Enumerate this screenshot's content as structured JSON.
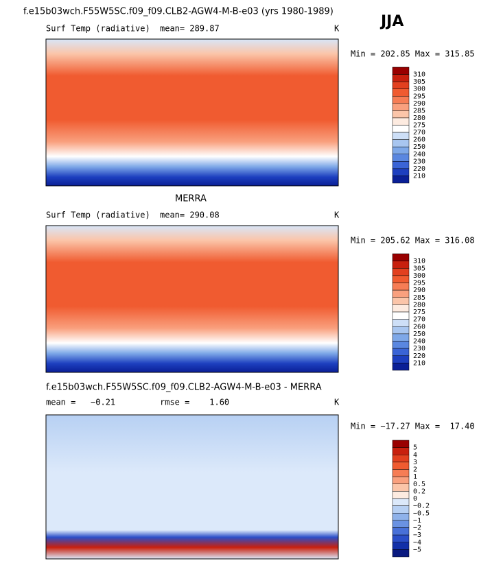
{
  "season": "JJA",
  "panels": [
    {
      "title": "f.e15b03wch.F55W5SC.f09_f09.CLB2-AGW4-M-B-e03 (yrs 1980-1989)",
      "variable": "Surf Temp (radiative)",
      "stats": [
        "mean= 289.87"
      ],
      "units": "K",
      "range": "Min = 202.85 Max = 315.85",
      "colorbar": {
        "labels": [
          "310",
          "305",
          "300",
          "295",
          "290",
          "285",
          "280",
          "275",
          "270",
          "260",
          "250",
          "240",
          "230",
          "220",
          "210"
        ],
        "colors": [
          "#990000",
          "#c8200e",
          "#e2401f",
          "#f05b30",
          "#f67d55",
          "#f9a07e",
          "#fbc5a9",
          "#fdebe0",
          "#ffffff",
          "#cddff7",
          "#a8c6f0",
          "#7ea8e8",
          "#5a87e0",
          "#3a64d6",
          "#1d3fbf",
          "#0a1f96"
        ]
      }
    },
    {
      "title": "MERRA",
      "variable": "Surf Temp (radiative)",
      "stats": [
        "mean= 290.08"
      ],
      "units": "K",
      "range": "Min = 205.62 Max = 316.08",
      "colorbar": {
        "labels": [
          "310",
          "305",
          "300",
          "295",
          "290",
          "285",
          "280",
          "275",
          "270",
          "260",
          "250",
          "240",
          "230",
          "220",
          "210"
        ],
        "colors": [
          "#990000",
          "#c8200e",
          "#e2401f",
          "#f05b30",
          "#f67d55",
          "#f9a07e",
          "#fbc5a9",
          "#fdebe0",
          "#ffffff",
          "#cddff7",
          "#a8c6f0",
          "#7ea8e8",
          "#5a87e0",
          "#3a64d6",
          "#1d3fbf",
          "#0a1f96"
        ]
      }
    },
    {
      "title": "f.e15b03wch.F55W5SC.f09_f09.CLB2-AGW4-M-B-e03 - MERRA",
      "variable": null,
      "stats": [
        "mean =   −0.21",
        "rmse =    1.60"
      ],
      "units": "K",
      "range": "Min = −17.27 Max =  17.40",
      "colorbar": {
        "labels": [
          "5",
          "4",
          "3",
          "2",
          "1",
          "0.5",
          "0.2",
          "0",
          "−0.2",
          "−0.5",
          "−1",
          "−2",
          "−3",
          "−4",
          "−5"
        ],
        "colors": [
          "#990000",
          "#c8200e",
          "#e2401f",
          "#f05b30",
          "#f67d55",
          "#f9a07e",
          "#fbc5a9",
          "#fdebe0",
          "#dce9fa",
          "#b7d0f3",
          "#8fb2ea",
          "#6a92e2",
          "#4870d8",
          "#2a4ec8",
          "#1230a8",
          "#0a1a80"
        ]
      }
    }
  ]
}
